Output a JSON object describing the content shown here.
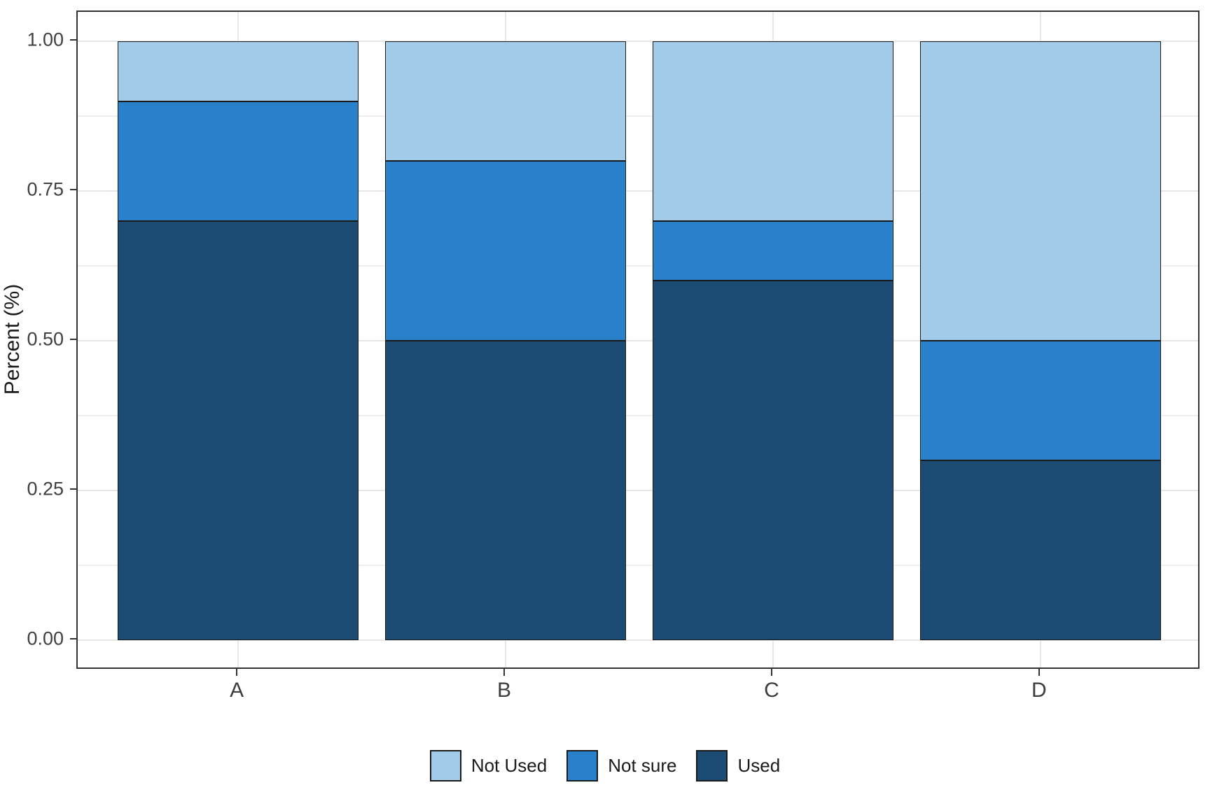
{
  "chart_data": {
    "type": "bar",
    "stacked": true,
    "orientation": "vertical",
    "title": "",
    "xlabel": "",
    "ylabel": "Percent (%)",
    "categories": [
      "A",
      "B",
      "C",
      "D"
    ],
    "series": [
      {
        "name": "Used",
        "color": "#1C4B74",
        "values": [
          0.7,
          0.5,
          0.6,
          0.3
        ]
      },
      {
        "name": "Not sure",
        "color": "#2A81CB",
        "values": [
          0.2,
          0.3,
          0.1,
          0.2
        ]
      },
      {
        "name": "Not Used",
        "color": "#A1CBE9",
        "values": [
          0.1,
          0.2,
          0.3,
          0.5
        ]
      }
    ],
    "ylim": [
      0,
      1
    ],
    "y_major_ticks": [
      0,
      0.25,
      0.5,
      0.75,
      1
    ],
    "y_tick_labels": [
      "0.00",
      "0.25",
      "0.50",
      "0.75",
      "1.00"
    ],
    "y_minor_ticks": [
      0.125,
      0.375,
      0.625,
      0.875
    ],
    "grid": true,
    "legend": {
      "position": "bottom",
      "items": [
        {
          "label": "Not Used",
          "color": "#A1CBE9"
        },
        {
          "label": "Not sure",
          "color": "#2A81CB"
        },
        {
          "label": "Used",
          "color": "#1C4B74"
        }
      ]
    },
    "colors": {
      "bar_outline": "#1a1a1a",
      "panel_border": "#333333",
      "grid_major": "#e7e7e7",
      "grid_minor": "#efefef",
      "tick_text": "#404040",
      "axis_title_text": "#1a1a1a"
    }
  }
}
